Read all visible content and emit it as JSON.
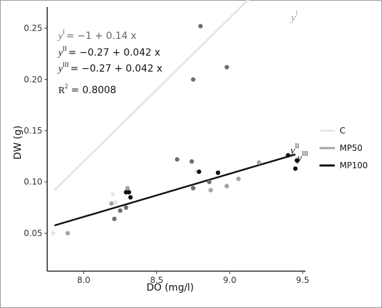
{
  "chart_data": {
    "type": "scatter",
    "xlabel": "DO (mg/l)",
    "ylabel": "DW (g)",
    "xlim": [
      7.75,
      9.52
    ],
    "ylim": [
      0.013,
      0.268
    ],
    "xticks": [
      "8.0",
      "8.5",
      "9.0",
      "9.5"
    ],
    "yticks": [
      "0.05",
      "0.10",
      "0.15",
      "0.20",
      "0.25"
    ],
    "grid": false,
    "legend_position": "right",
    "series": [
      {
        "name": "C",
        "color": "#e6e6e6",
        "line": {
          "intercept": -1,
          "slope": 0.14,
          "x_range": [
            7.8,
            9.45
          ]
        },
        "points": [
          [
            7.79,
            0.05
          ],
          [
            8.2,
            0.088
          ],
          [
            8.22,
            0.08
          ],
          [
            8.77,
            0.11
          ]
        ]
      },
      {
        "name": "MP50",
        "color": "#a3a3a3",
        "line": {
          "intercept": -0.27,
          "slope": 0.042,
          "x_range": [
            7.8,
            9.45
          ]
        },
        "points": [
          [
            7.89,
            0.05
          ],
          [
            8.19,
            0.079
          ],
          [
            8.3,
            0.094
          ],
          [
            8.87,
            0.092
          ],
          [
            8.98,
            0.096
          ],
          [
            9.06,
            0.103
          ],
          [
            9.2,
            0.119
          ]
        ]
      },
      {
        "name": "MP100",
        "color": "#101010",
        "line": {
          "intercept": -0.27,
          "slope": 0.042,
          "x_range": [
            7.8,
            9.45
          ]
        },
        "points": [
          [
            8.29,
            0.09
          ],
          [
            8.31,
            0.09
          ],
          [
            8.32,
            0.085
          ],
          [
            8.79,
            0.11
          ],
          [
            8.92,
            0.109
          ],
          [
            9.4,
            0.126
          ],
          [
            9.45,
            0.113
          ],
          [
            9.46,
            0.121
          ]
        ]
      },
      {
        "name": "",
        "color": "#6e6e6e",
        "points": [
          [
            8.21,
            0.064
          ],
          [
            8.25,
            0.072
          ],
          [
            8.29,
            0.075
          ],
          [
            8.64,
            0.122
          ],
          [
            8.74,
            0.12
          ],
          [
            8.75,
            0.094
          ],
          [
            8.75,
            0.2
          ],
          [
            8.8,
            0.252
          ],
          [
            8.86,
            0.1
          ],
          [
            8.98,
            0.212
          ]
        ]
      }
    ],
    "annotations": {
      "eq1": {
        "label": "y",
        "sup": "I",
        "rhs": "= −1 + 0.14 x"
      },
      "eq2": {
        "label": "y",
        "sup": "II",
        "rhs": "= −0.27 + 0.042 x"
      },
      "eq3": {
        "label": "y",
        "sup": "III",
        "rhs": "= −0.27 + 0.042 x"
      },
      "r2": {
        "label": "R",
        "sup": "2",
        "rhs": " = 0.8008"
      },
      "line_label_1": {
        "label": "y",
        "sup": "I"
      },
      "line_label_2": {
        "label": "y",
        "sup": "II"
      },
      "line_label_3": {
        "label": "y",
        "sup": "III"
      }
    }
  }
}
